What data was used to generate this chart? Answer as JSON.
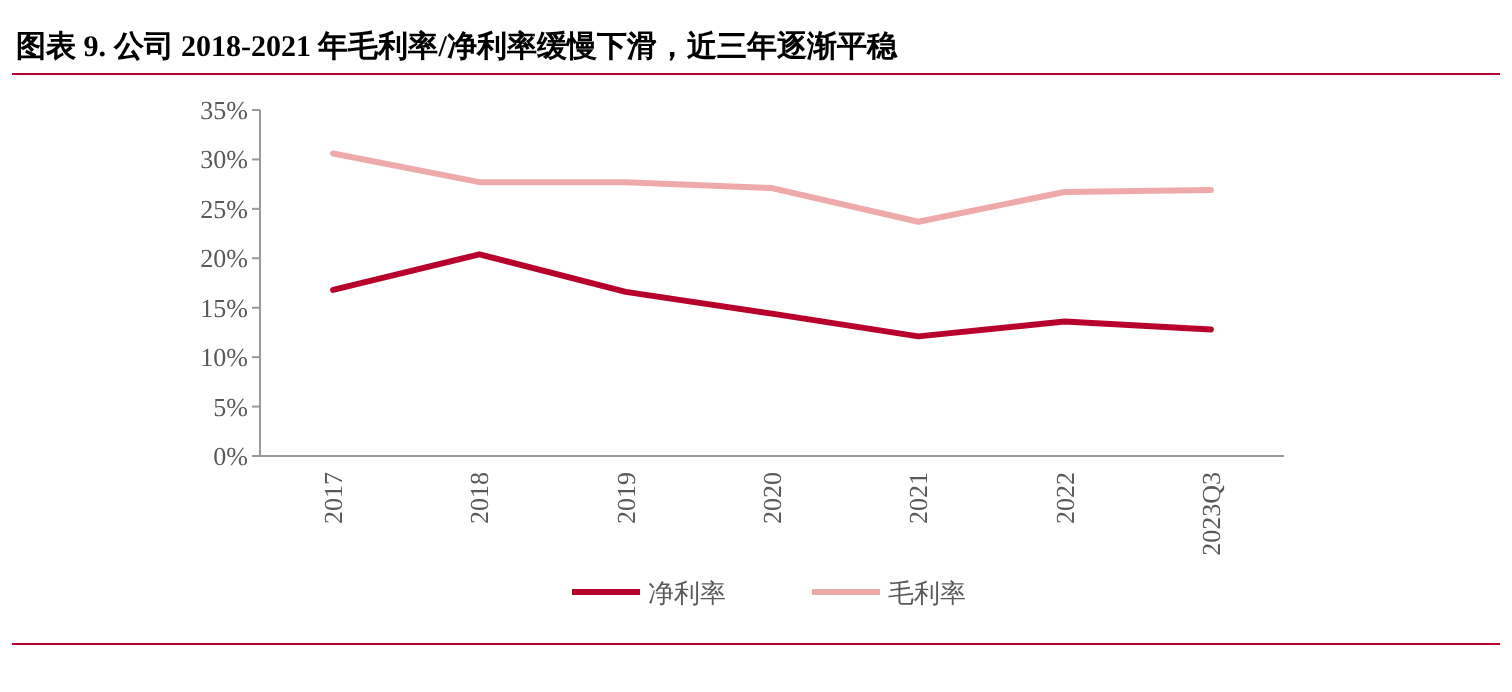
{
  "chart_data": {
    "type": "line",
    "title": "图表 9. 公司 2018-2021 年毛利率/净利率缓慢下滑，近三年逐渐平稳",
    "categories": [
      "2017",
      "2018",
      "2019",
      "2020",
      "2021",
      "2022",
      "2023Q3"
    ],
    "series": [
      {
        "name": "净利率",
        "color": "#b8002c",
        "values": [
          16.8,
          20.4,
          16.6,
          14.4,
          12.1,
          13.6,
          12.8
        ]
      },
      {
        "name": "毛利率",
        "color": "#eeaaaa",
        "values": [
          30.6,
          27.7,
          27.7,
          27.1,
          23.7,
          26.7,
          26.9
        ]
      }
    ],
    "ylim": [
      0,
      35
    ],
    "yticks": [
      {
        "value": 0,
        "label": "0%"
      },
      {
        "value": 5,
        "label": "5%"
      },
      {
        "value": 10,
        "label": "10%"
      },
      {
        "value": 15,
        "label": "15%"
      },
      {
        "value": 20,
        "label": "20%"
      },
      {
        "value": 25,
        "label": "25%"
      },
      {
        "value": 30,
        "label": "30%"
      },
      {
        "value": 35,
        "label": "35%"
      }
    ],
    "legend": "bottom"
  }
}
